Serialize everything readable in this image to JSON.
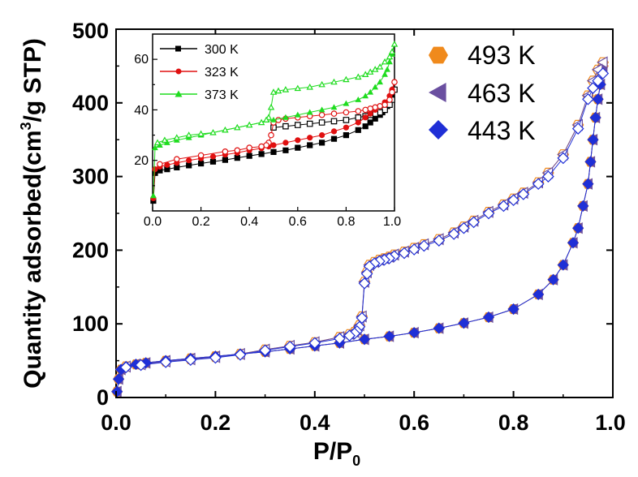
{
  "chart_data": [
    {
      "type": "scatter",
      "title": "",
      "xlabel": "P/P",
      "xlabel_subscript": "0",
      "ylabel": "Quantity adsorbed(cm",
      "ylabel_superscript": "3",
      "ylabel_suffix": "/g STP)",
      "xlim": [
        0.0,
        1.0
      ],
      "ylim": [
        0,
        500
      ],
      "x_ticks": [
        "0.0",
        "0.2",
        "0.4",
        "0.6",
        "0.8",
        "1.0"
      ],
      "y_ticks": [
        "0",
        "100",
        "200",
        "300",
        "400",
        "500"
      ],
      "legend_position": "top-right",
      "grid": false,
      "series": [
        {
          "name": "493 K",
          "color": "#f08a1c",
          "marker": "hexagon",
          "adsorption": {
            "x": [
              0.002,
              0.005,
              0.01,
              0.02,
              0.04,
              0.06,
              0.1,
              0.15,
              0.2,
              0.25,
              0.3,
              0.35,
              0.4,
              0.45,
              0.5,
              0.55,
              0.6,
              0.65,
              0.7,
              0.75,
              0.8,
              0.85,
              0.88,
              0.9,
              0.92,
              0.93,
              0.94,
              0.95,
              0.955,
              0.96,
              0.965,
              0.97,
              0.975,
              0.98
            ],
            "y": [
              8,
              25,
              38,
              42,
              45,
              47,
              50,
              53,
              56,
              59,
              62,
              66,
              70,
              74,
              79,
              83,
              88,
              94,
              101,
              109,
              120,
              140,
              160,
              180,
              210,
              230,
              260,
              290,
              320,
              350,
              380,
              405,
              425,
              450
            ]
          },
          "desorption": {
            "x": [
              0.98,
              0.97,
              0.96,
              0.95,
              0.93,
              0.9,
              0.87,
              0.85,
              0.82,
              0.8,
              0.78,
              0.75,
              0.72,
              0.7,
              0.68,
              0.65,
              0.62,
              0.6,
              0.58,
              0.56,
              0.55,
              0.54,
              0.53,
              0.52,
              0.51,
              0.505,
              0.5,
              0.495,
              0.49,
              0.485,
              0.48,
              0.47,
              0.45,
              0.4,
              0.35,
              0.3,
              0.25,
              0.2,
              0.15,
              0.1,
              0.05,
              0.02
            ],
            "y": [
              455,
              445,
              430,
              410,
              370,
              330,
              305,
              292,
              278,
              270,
              262,
              252,
              240,
              232,
              224,
              215,
              208,
              203,
              198,
              194,
              191,
              189,
              187,
              184,
              180,
              170,
              157,
              110,
              98,
              92,
              89,
              86,
              82,
              75,
              70,
              65,
              59,
              55,
              52,
              49,
              45,
              42
            ]
          }
        },
        {
          "name": "463 K",
          "color": "#6a4fa0",
          "marker": "triangle-left",
          "adsorption": {
            "x": [
              0.002,
              0.005,
              0.01,
              0.02,
              0.04,
              0.06,
              0.1,
              0.15,
              0.2,
              0.25,
              0.3,
              0.35,
              0.4,
              0.45,
              0.5,
              0.55,
              0.6,
              0.65,
              0.7,
              0.75,
              0.8,
              0.85,
              0.88,
              0.9,
              0.92,
              0.93,
              0.94,
              0.95,
              0.955,
              0.96,
              0.965,
              0.97,
              0.975,
              0.98
            ],
            "y": [
              8,
              25,
              38,
              42,
              45,
              47,
              50,
              53,
              56,
              59,
              62,
              66,
              70,
              74,
              79,
              83,
              88,
              94,
              101,
              109,
              120,
              140,
              160,
              180,
              210,
              230,
              260,
              290,
              320,
              350,
              380,
              405,
              425,
              450
            ]
          },
          "desorption": {
            "x": [
              0.98,
              0.97,
              0.96,
              0.95,
              0.93,
              0.9,
              0.87,
              0.85,
              0.82,
              0.8,
              0.78,
              0.75,
              0.72,
              0.7,
              0.68,
              0.65,
              0.62,
              0.6,
              0.58,
              0.56,
              0.55,
              0.54,
              0.53,
              0.52,
              0.51,
              0.505,
              0.5,
              0.495,
              0.49,
              0.485,
              0.48,
              0.47,
              0.45,
              0.4,
              0.35,
              0.3,
              0.25,
              0.2,
              0.15,
              0.1,
              0.05,
              0.02
            ],
            "y": [
              455,
              445,
              430,
              410,
              370,
              330,
              305,
              292,
              278,
              270,
              262,
              252,
              240,
              232,
              224,
              215,
              208,
              203,
              198,
              194,
              191,
              189,
              187,
              184,
              180,
              170,
              157,
              110,
              98,
              92,
              89,
              86,
              82,
              75,
              70,
              65,
              59,
              55,
              52,
              49,
              45,
              42
            ]
          }
        },
        {
          "name": "443 K",
          "color": "#1f2fd6",
          "marker": "diamond",
          "adsorption": {
            "x": [
              0.002,
              0.005,
              0.01,
              0.02,
              0.04,
              0.06,
              0.1,
              0.15,
              0.2,
              0.25,
              0.3,
              0.35,
              0.4,
              0.45,
              0.5,
              0.55,
              0.6,
              0.65,
              0.7,
              0.75,
              0.8,
              0.85,
              0.88,
              0.9,
              0.92,
              0.93,
              0.94,
              0.95,
              0.955,
              0.96,
              0.965,
              0.97,
              0.975,
              0.98
            ],
            "y": [
              8,
              25,
              38,
              42,
              45,
              47,
              50,
              53,
              56,
              59,
              62,
              66,
              70,
              74,
              79,
              83,
              88,
              94,
              101,
              109,
              120,
              140,
              160,
              180,
              210,
              230,
              260,
              290,
              320,
              350,
              380,
              405,
              425,
              440
            ]
          },
          "desorption": {
            "x": [
              0.98,
              0.97,
              0.96,
              0.95,
              0.93,
              0.9,
              0.87,
              0.85,
              0.82,
              0.8,
              0.78,
              0.75,
              0.72,
              0.7,
              0.68,
              0.65,
              0.62,
              0.6,
              0.58,
              0.56,
              0.55,
              0.54,
              0.53,
              0.52,
              0.51,
              0.505,
              0.5,
              0.495,
              0.49,
              0.485,
              0.48,
              0.47,
              0.45,
              0.4,
              0.35,
              0.3,
              0.25,
              0.2,
              0.15,
              0.1,
              0.05,
              0.02
            ],
            "y": [
              440,
              430,
              420,
              405,
              365,
              325,
              300,
              290,
              276,
              268,
              260,
              250,
              238,
              230,
              222,
              213,
              206,
              201,
              196,
              192,
              189,
              187,
              185,
              182,
              178,
              168,
              155,
              108,
              96,
              90,
              87,
              84,
              80,
              74,
              69,
              64,
              58,
              54,
              51,
              48,
              44,
              41
            ]
          }
        }
      ]
    },
    {
      "type": "scatter",
      "title": "",
      "inset": true,
      "xlim": [
        0.0,
        1.0
      ],
      "ylim": [
        0,
        70
      ],
      "x_ticks": [
        "0.0",
        "0.2",
        "0.4",
        "0.6",
        "0.8",
        "1.0"
      ],
      "y_ticks": [
        "20",
        "40",
        "60"
      ],
      "legend_position": "top-left",
      "grid": false,
      "series": [
        {
          "name": "300 K",
          "color": "#000000",
          "marker": "square",
          "adsorption": {
            "x": [
              0.003,
              0.01,
              0.03,
              0.06,
              0.1,
              0.15,
              0.2,
              0.25,
              0.3,
              0.35,
              0.4,
              0.45,
              0.5,
              0.55,
              0.6,
              0.65,
              0.7,
              0.75,
              0.8,
              0.85,
              0.88,
              0.9,
              0.92,
              0.94,
              0.95,
              0.96,
              0.97,
              0.98,
              0.99,
              1.0
            ],
            "y": [
              4,
              15,
              16,
              16.5,
              17.2,
              18,
              18.8,
              19.5,
              20.2,
              21,
              21.8,
              22.5,
              23.3,
              24,
              25,
              26,
              27,
              28.5,
              30,
              32,
              33.5,
              35,
              36.5,
              38,
              39,
              40,
              41.5,
              43,
              45,
              48
            ]
          },
          "desorption": {
            "x": [
              1.0,
              0.99,
              0.98,
              0.96,
              0.94,
              0.92,
              0.9,
              0.88,
              0.85,
              0.8,
              0.75,
              0.7,
              0.65,
              0.6,
              0.55,
              0.5
            ],
            "y": [
              48,
              44,
              42,
              40,
              39,
              38.5,
              38,
              37.5,
              37,
              36,
              35.5,
              35,
              34.5,
              34,
              33.5,
              33
            ]
          }
        },
        {
          "name": "323 K",
          "color": "#e01010",
          "marker": "circle",
          "adsorption": {
            "x": [
              0.003,
              0.01,
              0.03,
              0.06,
              0.1,
              0.15,
              0.2,
              0.25,
              0.3,
              0.35,
              0.4,
              0.45,
              0.48,
              0.5,
              0.55,
              0.6,
              0.65,
              0.7,
              0.75,
              0.8,
              0.85,
              0.88,
              0.9,
              0.92,
              0.94,
              0.96,
              0.98,
              0.99,
              1.0
            ],
            "y": [
              5,
              16.5,
              17.5,
              18.2,
              19,
              20,
              20.8,
              21.5,
              22.3,
              23,
              24,
              24.8,
              25.5,
              26,
              27,
              28,
              29,
              30,
              31.5,
              33,
              35,
              37,
              38.5,
              40,
              41.5,
              43,
              45.5,
              48,
              51
            ]
          },
          "desorption": {
            "x": [
              1.0,
              0.99,
              0.98,
              0.96,
              0.94,
              0.92,
              0.9,
              0.88,
              0.85,
              0.8,
              0.75,
              0.7,
              0.65,
              0.6,
              0.55,
              0.52,
              0.5,
              0.49,
              0.48,
              0.47,
              0.45,
              0.4,
              0.35,
              0.3,
              0.2,
              0.1,
              0.03
            ],
            "y": [
              51,
              47,
              44,
              42,
              41.5,
              41,
              40.5,
              40,
              39.5,
              39,
              38.5,
              38,
              37.5,
              37,
              36.5,
              36,
              35,
              30,
              27,
              26,
              25.5,
              25,
              24,
              23.5,
              22,
              20.5,
              18.5
            ]
          }
        },
        {
          "name": "373 K",
          "color": "#1fdc1f",
          "marker": "triangle-up",
          "adsorption": {
            "x": [
              0.003,
              0.01,
              0.03,
              0.06,
              0.1,
              0.15,
              0.2,
              0.25,
              0.3,
              0.35,
              0.4,
              0.45,
              0.5,
              0.55,
              0.6,
              0.65,
              0.7,
              0.75,
              0.8,
              0.85,
              0.88,
              0.9,
              0.92,
              0.94,
              0.96,
              0.97,
              0.98,
              0.99,
              1.0
            ],
            "y": [
              6,
              25,
              26,
              27,
              28,
              29,
              30,
              31,
              32,
              33,
              34,
              35,
              36,
              37,
              38,
              39,
              40,
              41,
              42.5,
              44,
              45.5,
              47,
              49,
              51,
              54,
              56,
              59,
              62,
              66
            ]
          },
          "desorption": {
            "x": [
              1.0,
              0.99,
              0.98,
              0.96,
              0.94,
              0.92,
              0.9,
              0.88,
              0.85,
              0.8,
              0.75,
              0.7,
              0.65,
              0.6,
              0.55,
              0.52,
              0.5,
              0.49,
              0.48,
              0.47,
              0.45,
              0.4,
              0.35,
              0.3,
              0.25,
              0.2,
              0.15,
              0.1,
              0.05,
              0.02
            ],
            "y": [
              66,
              63,
              61,
              59,
              57,
              56,
              55,
              54,
              53,
              52,
              51,
              50,
              49,
              48.5,
              48,
              47.5,
              47,
              41,
              37,
              36,
              35,
              34,
              33,
              32,
              31,
              30.5,
              30,
              29,
              28,
              27
            ]
          }
        }
      ]
    }
  ]
}
